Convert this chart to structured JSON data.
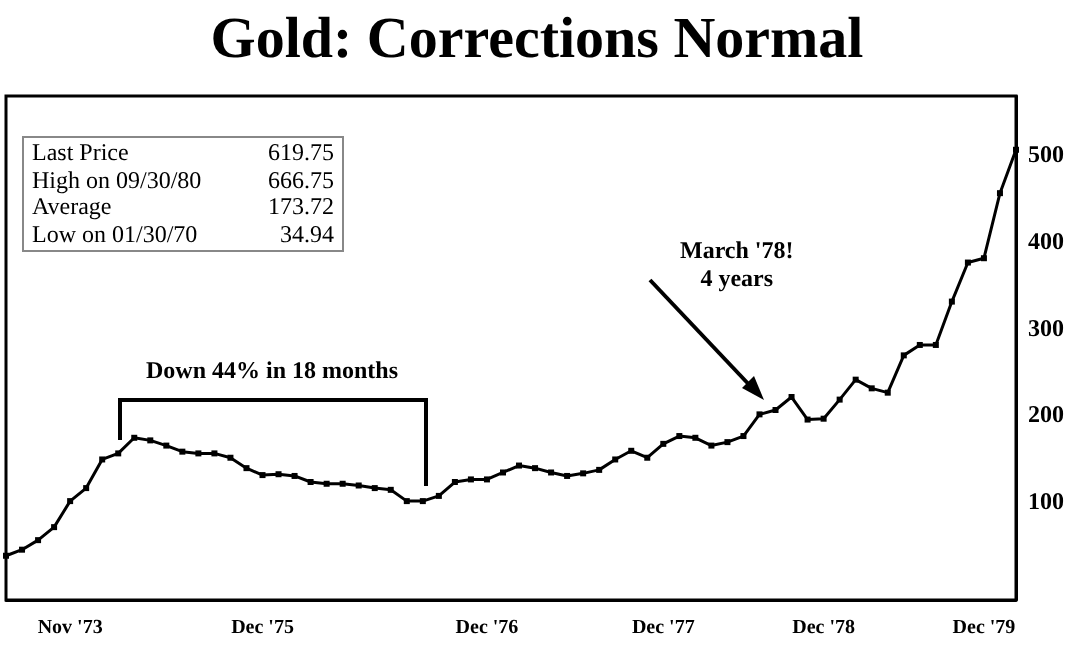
{
  "chart_data": {
    "type": "line",
    "title": "Gold: Corrections Normal",
    "categories": [
      null,
      null,
      null,
      null,
      "Nov '73",
      null,
      null,
      null,
      null,
      null,
      null,
      null,
      null,
      null,
      null,
      null,
      "Dec '75",
      null,
      null,
      null,
      null,
      null,
      null,
      null,
      null,
      null,
      null,
      null,
      null,
      null,
      "Dec '76",
      null,
      null,
      null,
      null,
      null,
      null,
      null,
      null,
      null,
      null,
      "Dec '77",
      null,
      null,
      null,
      null,
      null,
      null,
      null,
      null,
      null,
      "Dec '78",
      null,
      null,
      null,
      null,
      null,
      null,
      null,
      null,
      null,
      "Dec '79",
      null,
      null
    ],
    "series": [
      {
        "color": "#000000",
        "values": [
          37,
          44,
          55,
          70,
          100,
          115,
          148,
          155,
          173,
          170,
          164,
          157,
          155,
          155,
          150,
          138,
          130,
          131,
          129,
          122,
          120,
          120,
          118,
          115,
          113,
          100,
          100,
          106,
          122,
          125,
          125,
          133,
          141,
          138,
          133,
          129,
          132,
          136,
          148,
          158,
          150,
          166,
          175,
          173,
          164,
          168,
          175,
          200,
          205,
          220,
          194,
          195,
          217,
          240,
          230,
          225,
          268,
          280,
          280,
          330,
          375,
          380,
          455,
          505
        ]
      }
    ],
    "ylim": [
      -14,
      567
    ],
    "yticks": [
      100,
      200,
      300,
      400,
      500
    ],
    "grid": false,
    "marker": "square",
    "line_style": "solid",
    "annotations": [
      "Last Price 619.75",
      "High on 09/30/80 666.75",
      "Average 173.72",
      "Low on 01/30/70 34.94",
      "Down 44% in 18 months",
      "March '78!\n4 years"
    ]
  }
}
